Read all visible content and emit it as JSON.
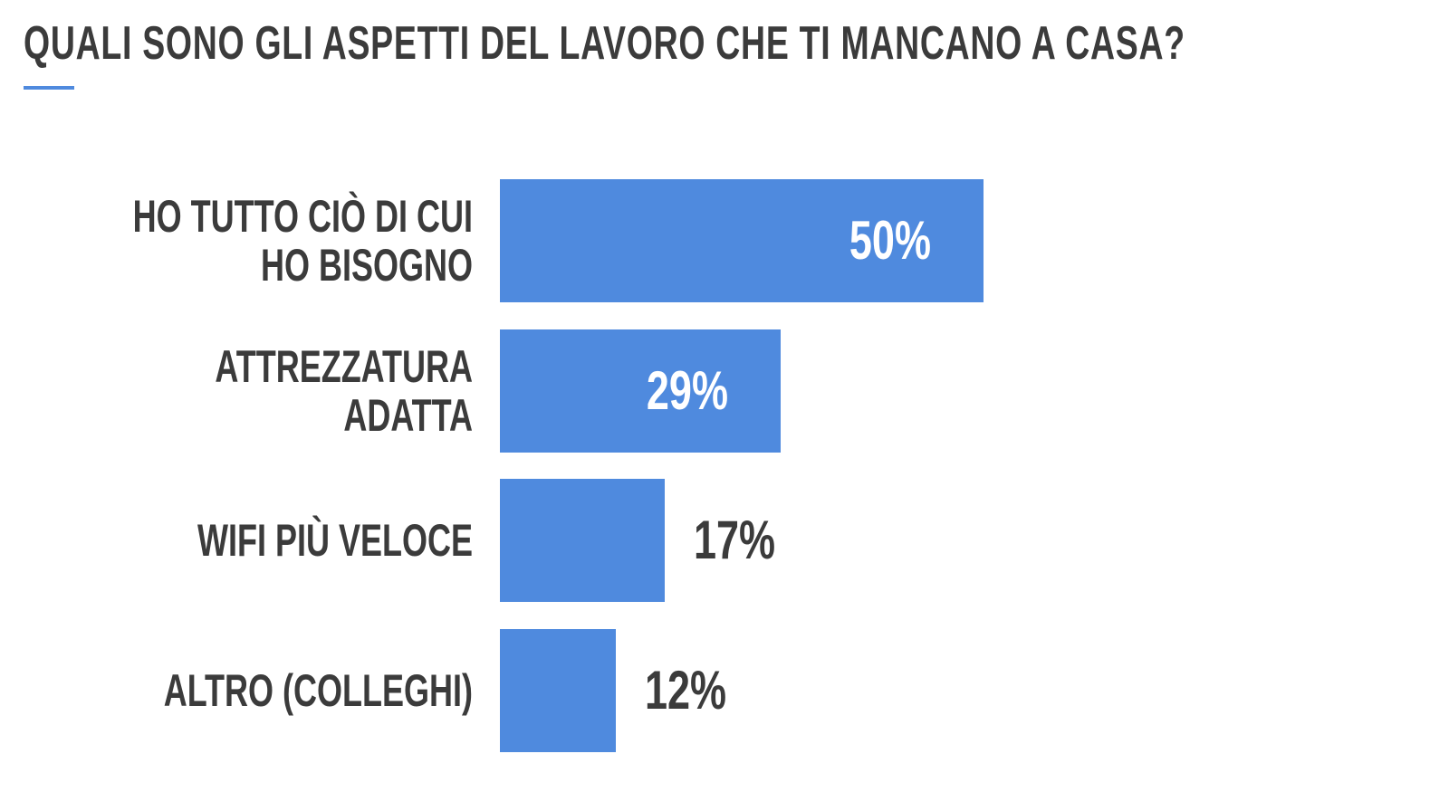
{
  "chart_data": {
    "type": "bar",
    "orientation": "horizontal",
    "title": "QUALI SONO GLI ASPETTI DEL LAVORO CHE TI MANCANO A CASA?",
    "categories": [
      "HO TUTTO CIÒ DI CUI HO BISOGNO",
      "ATTREZZATURA ADATTA",
      "WIFI PIÙ VELOCE",
      "ALTRO (COLLEGHI)"
    ],
    "values": [
      50,
      29,
      17,
      12
    ],
    "value_labels": [
      "50%",
      "29%",
      "17%",
      "12%"
    ],
    "color": "#4f8ade"
  }
}
